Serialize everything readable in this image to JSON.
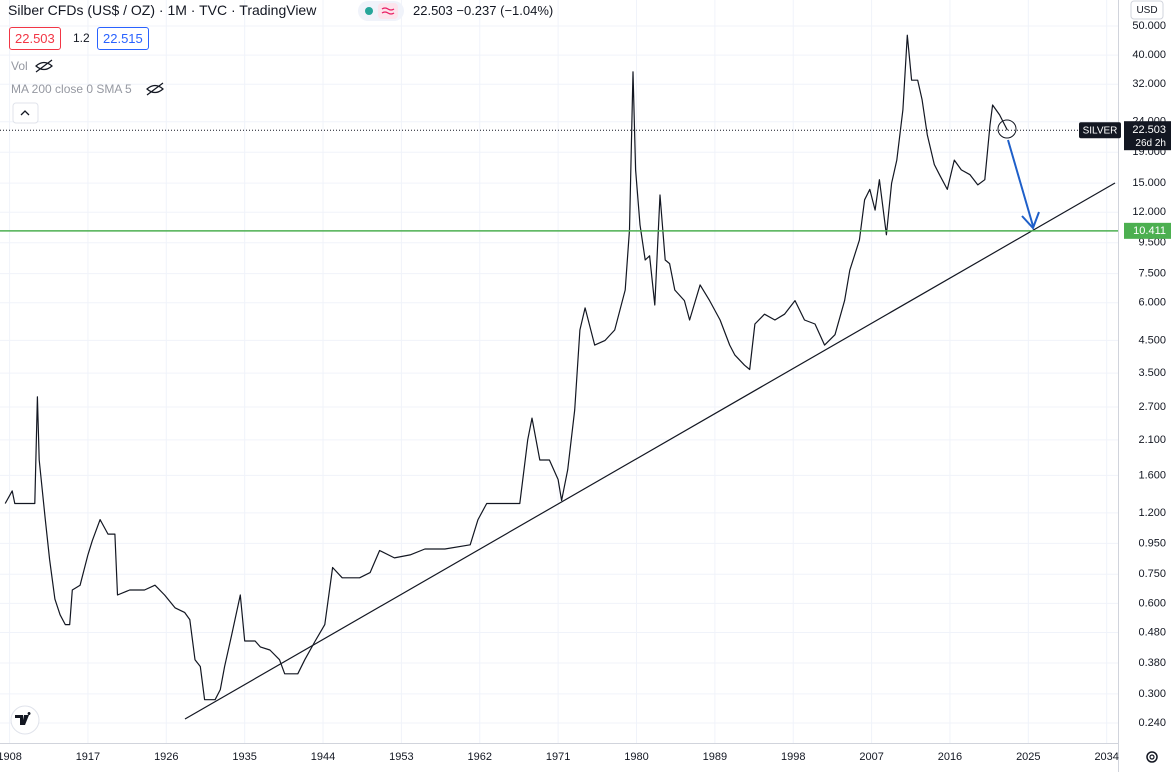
{
  "chart_data": {
    "type": "line",
    "title": "Silber CFDs (US$ / OZ) · 1M · TVC · TradingView",
    "quote": "22.503 −0.237 (−1.04%)",
    "bid": "22.503",
    "spread": "1.2",
    "ask": "22.515",
    "indicators": [
      "Vol",
      "MA 200 close 0 SMA 5"
    ],
    "currency": "USD",
    "symbol": "SILVER",
    "countdown": "26d 2h",
    "last": 22.503,
    "hline": 10.411,
    "hline_color": "#4caf50",
    "color": "#131722",
    "log_scale": true,
    "grid": true,
    "x": [
      1907.5,
      1908.3,
      1908.6,
      1910.9,
      1911.2,
      1911.4,
      1912.1,
      1912.6,
      1913.2,
      1913.8,
      1914.4,
      1914.9,
      1915.2,
      1916.1,
      1917.0,
      1917.5,
      1918.4,
      1919.3,
      1920.1,
      1920.4,
      1921.8,
      1923.5,
      1924.7,
      1925.8,
      1927.0,
      1928.1,
      1928.7,
      1929.3,
      1929.9,
      1930.4,
      1931.6,
      1932.2,
      1932.7,
      1933.5,
      1934.5,
      1935.0,
      1936.2,
      1936.8,
      1937.9,
      1939.0,
      1939.6,
      1941.1,
      1941.9,
      1943.1,
      1944.2,
      1945.1,
      1946.2,
      1948.2,
      1949.4,
      1950.5,
      1952.2,
      1954.0,
      1955.7,
      1958.0,
      1960.9,
      1961.8,
      1962.8,
      1966.6,
      1967.5,
      1968.0,
      1968.9,
      1970.0,
      1971.0,
      1971.4,
      1972.1,
      1972.9,
      1973.5,
      1974.1,
      1975.2,
      1976.4,
      1977.5,
      1978.7,
      1979.2,
      1979.6,
      1979.9,
      1980.4,
      1981.0,
      1981.5,
      1982.1,
      1982.7,
      1983.3,
      1983.8,
      1984.4,
      1985.5,
      1986.1,
      1987.3,
      1988.4,
      1989.6,
      1990.7,
      1991.3,
      1992.4,
      1993.0,
      1993.6,
      1994.7,
      1995.9,
      1997.0,
      1998.2,
      1999.3,
      2000.5,
      2001.6,
      2002.8,
      2003.9,
      2004.5,
      2005.6,
      2006.2,
      2006.8,
      2007.4,
      2007.9,
      2008.7,
      2009.3,
      2009.9,
      2010.6,
      2011.1,
      2011.6,
      2012.3,
      2012.8,
      2013.4,
      2014.2,
      2014.8,
      2015.7,
      2016.5,
      2017.3,
      2018.3,
      2019.2,
      2020.0,
      2020.6,
      2020.9,
      2021.7,
      2022.3,
      2022.6
    ],
    "values": [
      1.29,
      1.42,
      1.29,
      1.29,
      2.92,
      1.8,
      1.14,
      0.84,
      0.62,
      0.55,
      0.51,
      0.51,
      0.665,
      0.69,
      0.87,
      0.97,
      1.14,
      1.02,
      1.02,
      0.64,
      0.665,
      0.665,
      0.69,
      0.64,
      0.58,
      0.56,
      0.53,
      0.39,
      0.37,
      0.287,
      0.287,
      0.31,
      0.37,
      0.47,
      0.64,
      0.45,
      0.45,
      0.43,
      0.42,
      0.39,
      0.35,
      0.35,
      0.39,
      0.45,
      0.51,
      0.79,
      0.73,
      0.73,
      0.76,
      0.9,
      0.85,
      0.87,
      0.91,
      0.91,
      0.94,
      1.14,
      1.29,
      1.29,
      2.1,
      2.48,
      1.8,
      1.8,
      1.55,
      1.32,
      1.67,
      2.64,
      4.87,
      5.77,
      4.34,
      4.5,
      4.87,
      6.62,
      10.5,
      35.2,
      16.6,
      10.9,
      8.33,
      8.6,
      5.9,
      13.7,
      8.33,
      8.1,
      6.62,
      6.1,
      5.26,
      6.88,
      6.1,
      5.26,
      4.34,
      4.02,
      3.72,
      3.6,
      5.1,
      5.5,
      5.26,
      5.5,
      6.1,
      5.26,
      5.1,
      4.34,
      4.7,
      6.1,
      7.7,
      9.7,
      13.2,
      14.3,
      12.2,
      15.4,
      10.1,
      15.0,
      17.9,
      26.3,
      46.6,
      33.0,
      33.0,
      28.4,
      21.7,
      17.3,
      16.0,
      14.3,
      17.9,
      16.6,
      16.0,
      14.8,
      15.4,
      23.4,
      27.3,
      25.3,
      23.4,
      22.5
    ],
    "xlim": [
      1906.9,
      2035.3
    ],
    "xticks": [
      1908,
      1917,
      1926,
      1935,
      1944,
      1953,
      1962,
      1971,
      1980,
      1989,
      1998,
      2007,
      2016,
      2025,
      2034
    ],
    "ylim": [
      0.206,
      61
    ],
    "yticks": [
      {
        "value": 0.24,
        "label": "0.240"
      },
      {
        "value": 0.3,
        "label": "0.300"
      },
      {
        "value": 0.38,
        "label": "0.380"
      },
      {
        "value": 0.48,
        "label": "0.480"
      },
      {
        "value": 0.6,
        "label": "0.600"
      },
      {
        "value": 0.75,
        "label": "0.750"
      },
      {
        "value": 0.95,
        "label": "0.950"
      },
      {
        "value": 1.2,
        "label": "1.200"
      },
      {
        "value": 1.6,
        "label": "1.600"
      },
      {
        "value": 2.1,
        "label": "2.100"
      },
      {
        "value": 2.7,
        "label": "2.700"
      },
      {
        "value": 3.5,
        "label": "3.500"
      },
      {
        "value": 4.5,
        "label": "4.500"
      },
      {
        "value": 6,
        "label": "6.000"
      },
      {
        "value": 7.5,
        "label": "7.500"
      },
      {
        "value": 9.5,
        "label": "9.500"
      },
      {
        "value": 12,
        "label": "12.000"
      },
      {
        "value": 15,
        "label": "15.000"
      },
      {
        "value": 19,
        "label": "19.000"
      },
      {
        "value": 24,
        "label": "24.000"
      },
      {
        "value": 32,
        "label": "32.000"
      },
      {
        "value": 40,
        "label": "40.000"
      },
      {
        "value": 50,
        "label": "50.000"
      }
    ]
  }
}
